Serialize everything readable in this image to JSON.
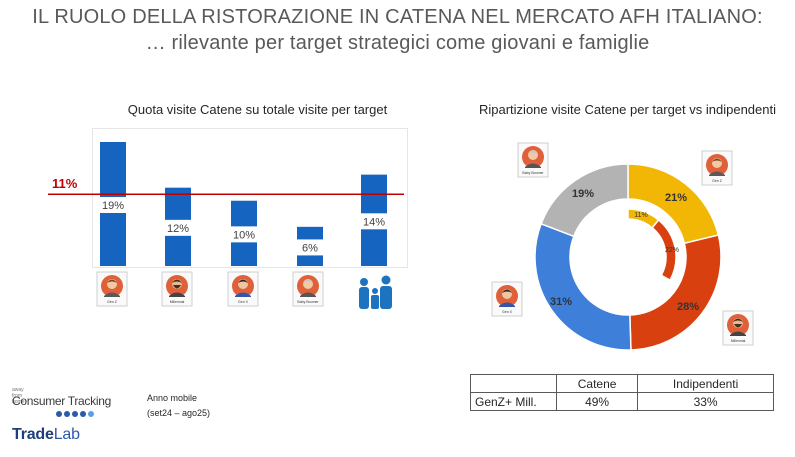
{
  "header": {
    "title": "IL RUOLO DELLA RISTORAZIONE IN CATENA NEL MERCATO AFH ITALIANO:",
    "subtitle": "… rilevante per target strategici come giovani e famiglie"
  },
  "colors": {
    "bar": "#1565c0",
    "reference_line": "#c00000",
    "genz": "#f2b705",
    "millennial": "#d94010",
    "genx": "#3d7fd9",
    "boomer": "#b3b3b3"
  },
  "chart_data": [
    {
      "type": "bar",
      "title": "Quota visite Catene su totale visite per target",
      "categories": [
        "Gen Z",
        "Millennial",
        "Gen X",
        "Baby Boomer",
        ""
      ],
      "values": [
        19,
        12,
        10,
        6,
        14
      ],
      "value_labels": [
        "19%",
        "12%",
        "10%",
        "6%",
        "14%"
      ],
      "reference_line": {
        "value": 11,
        "label": "11%"
      },
      "ylim": [
        0,
        19
      ]
    },
    {
      "type": "pie",
      "title": "Ripartizione visite Catene per target vs indipendenti",
      "rings": [
        {
          "name": "Catene",
          "slices": [
            {
              "label": "Gen Z",
              "value": 21,
              "value_label": "21%",
              "color": "#f2b705"
            },
            {
              "label": "Millennial",
              "value": 28,
              "value_label": "28%",
              "color": "#d94010"
            },
            {
              "label": "Gen X",
              "value": 31,
              "value_label": "31%",
              "color": "#3d7fd9"
            },
            {
              "label": "Baby Boomer",
              "value": 19,
              "value_label": "19%",
              "color": "#b3b3b3"
            }
          ]
        },
        {
          "name": "Indipendenti",
          "slices": [
            {
              "label": "Gen Z",
              "value": 11,
              "value_label": "11%",
              "color": "#f2b705"
            },
            {
              "label": "Millennial",
              "value": 22,
              "value_label": "22%",
              "color": "#d94010"
            }
          ]
        }
      ]
    }
  ],
  "avatars": {
    "genz": "Gen Z",
    "millennial": "Millennial",
    "genx": "Gen X",
    "boomer": "Baby Boomer",
    "family_icon": "family-icon"
  },
  "table": {
    "headers": [
      "",
      "Catene",
      "Indipendenti"
    ],
    "rows": [
      {
        "label": "GenZ+ Mill.",
        "catene": "49%",
        "indipendenti": "33%"
      }
    ]
  },
  "footer": {
    "source_small": "away from home",
    "source_name": "Consumer Tracking",
    "period_label": "Anno mobile",
    "period_range": "(set24 – ago25)",
    "brand_a": "Trade",
    "brand_b": "Lab"
  }
}
